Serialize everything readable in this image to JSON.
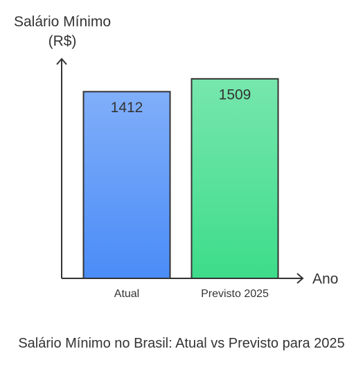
{
  "chart_data": {
    "type": "bar",
    "title": "Salário Mínimo no Brasil: Atual vs Previsto para 2025",
    "ylabel": "Salário Mínimo (R$)",
    "xlabel": "Ano",
    "categories": [
      "Atual",
      "Previsto 2025"
    ],
    "values": [
      1412,
      1509
    ],
    "colors": [
      "#4a8cf7",
      "#3ddc8a"
    ],
    "ylim": [
      0,
      1660
    ]
  }
}
